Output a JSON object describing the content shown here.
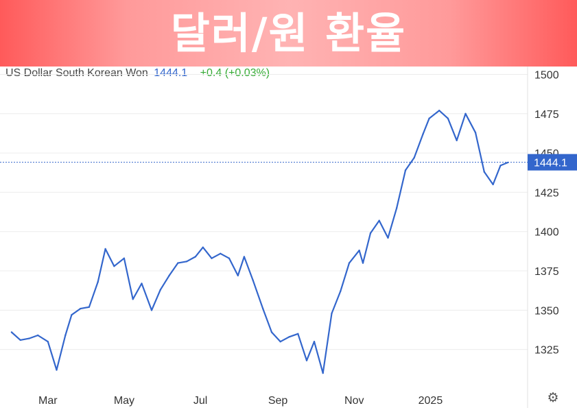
{
  "banner": {
    "title": "달러/원 환율"
  },
  "legend": {
    "name": "US Dollar South Korean Won",
    "value": "1444.1",
    "change": "+0.4 (+0.03%)"
  },
  "icons": {
    "settings": "gear-icon"
  },
  "colors": {
    "line": "#3366cc",
    "price_badge": "#3366cc",
    "change_positive": "#33aa33",
    "banner_edge": "#ff5a5a",
    "banner_center": "#ffb3b3"
  },
  "chart_data": {
    "type": "line",
    "title": "",
    "xlabel": "",
    "ylabel": "",
    "ylim": [
      1300,
      1505
    ],
    "grid": true,
    "y_axis_side": "right",
    "yticks": [
      1500,
      1475,
      1450,
      1425,
      1400,
      1375,
      1350,
      1325
    ],
    "xticks": [
      "Mar",
      "May",
      "Jul",
      "Sep",
      "Nov",
      "2025"
    ],
    "last_price": 1444.1,
    "last_price_label": "1444.1",
    "series": [
      {
        "name": "US Dollar South Korean Won",
        "x": [
          "2024-02-01",
          "2024-02-08",
          "2024-02-15",
          "2024-02-22",
          "2024-03-01",
          "2024-03-08",
          "2024-03-15",
          "2024-03-20",
          "2024-03-27",
          "2024-04-03",
          "2024-04-10",
          "2024-04-16",
          "2024-04-23",
          "2024-05-01",
          "2024-05-08",
          "2024-05-15",
          "2024-05-23",
          "2024-05-30",
          "2024-06-06",
          "2024-06-13",
          "2024-06-20",
          "2024-06-27",
          "2024-07-03",
          "2024-07-10",
          "2024-07-17",
          "2024-07-24",
          "2024-07-31",
          "2024-08-05",
          "2024-08-12",
          "2024-08-20",
          "2024-08-27",
          "2024-09-03",
          "2024-09-10",
          "2024-09-17",
          "2024-09-24",
          "2024-09-30",
          "2024-10-07",
          "2024-10-14",
          "2024-10-21",
          "2024-10-28",
          "2024-11-05",
          "2024-11-08",
          "2024-11-14",
          "2024-11-21",
          "2024-11-28",
          "2024-12-05",
          "2024-12-12",
          "2024-12-19",
          "2024-12-26",
          "2024-12-31",
          "2025-01-08",
          "2025-01-15",
          "2025-01-22",
          "2025-01-29",
          "2025-02-06",
          "2025-02-13",
          "2025-02-20",
          "2025-02-26",
          "2025-03-04"
        ],
        "values": [
          1336,
          1331,
          1332,
          1334,
          1330,
          1312,
          1334,
          1347,
          1351,
          1352,
          1368,
          1389,
          1378,
          1383,
          1357,
          1367,
          1350,
          1363,
          1372,
          1380,
          1381,
          1384,
          1390,
          1383,
          1386,
          1383,
          1372,
          1384,
          1369,
          1351,
          1336,
          1330,
          1333,
          1335,
          1318,
          1330,
          1310,
          1348,
          1362,
          1380,
          1388,
          1380,
          1399,
          1407,
          1396,
          1415,
          1439,
          1447,
          1462,
          1472,
          1477,
          1472,
          1458,
          1475,
          1463,
          1438,
          1430,
          1442,
          1444
        ]
      }
    ]
  }
}
